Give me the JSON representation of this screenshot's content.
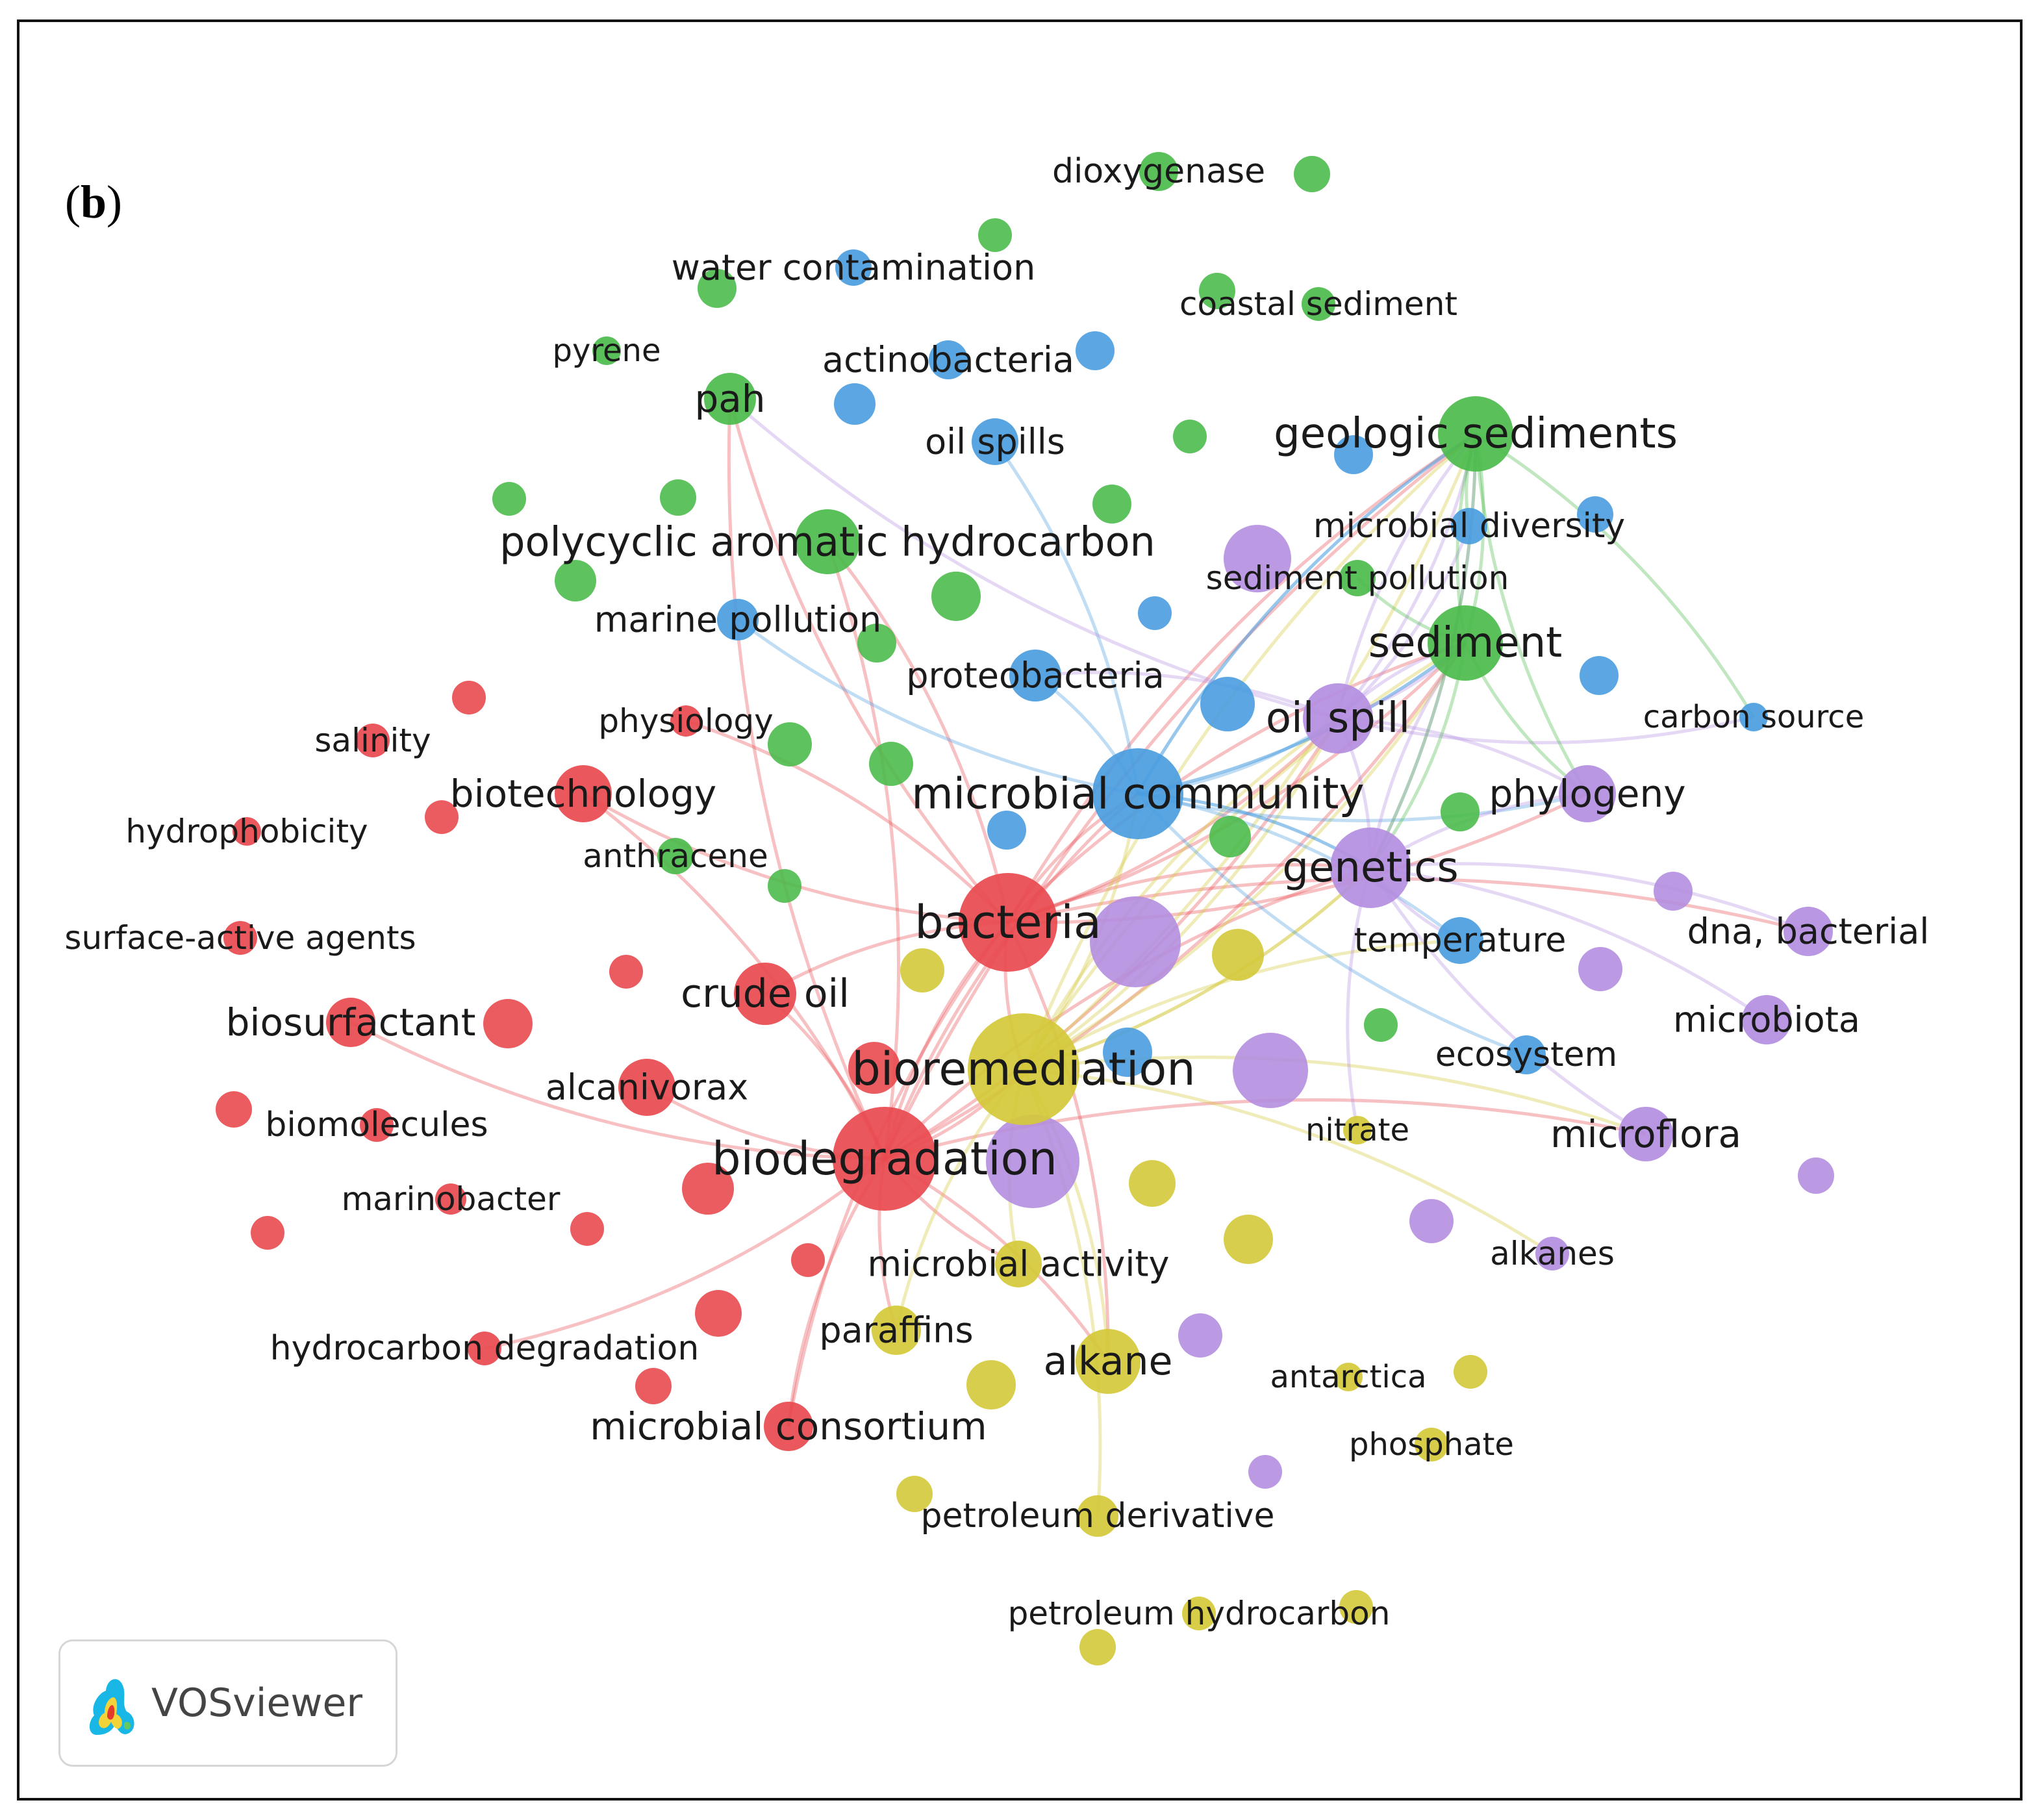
{
  "panel_label": "(b)",
  "panel_label_letter": "b",
  "software": "VOSviewer",
  "clusters": {
    "red": "#e84a4f",
    "green": "#4cbb4c",
    "blue": "#4a9de0",
    "yellow": "#d4c93a",
    "purple": "#b48ee0"
  },
  "nodes": [
    {
      "label": "biodegradation",
      "cluster": "red",
      "weight": 10
    },
    {
      "label": "bacteria",
      "cluster": "red",
      "weight": 9
    },
    {
      "label": "crude oil",
      "cluster": "red",
      "weight": 6
    },
    {
      "label": "biotechnology",
      "cluster": "red",
      "weight": 5
    },
    {
      "label": "biosurfactant",
      "cluster": "red",
      "weight": 5
    },
    {
      "label": "alcanivorax",
      "cluster": "red",
      "weight": 5
    },
    {
      "label": "microbial consortium",
      "cluster": "red",
      "weight": 5
    },
    {
      "label": "hydrocarbon degradation",
      "cluster": "red",
      "weight": 3
    },
    {
      "label": "biomolecules",
      "cluster": "red",
      "weight": 3
    },
    {
      "label": "marinobacter",
      "cluster": "red",
      "weight": 3
    },
    {
      "label": "physiology",
      "cluster": "red",
      "weight": 3
    },
    {
      "label": "salinity",
      "cluster": "red",
      "weight": 3
    },
    {
      "label": "hydrophobicity",
      "cluster": "red",
      "weight": 2
    },
    {
      "label": "surface-active agents",
      "cluster": "red",
      "weight": 3
    },
    {
      "label": "bioremediation",
      "cluster": "yellow",
      "weight": 10
    },
    {
      "label": "alkane",
      "cluster": "yellow",
      "weight": 6
    },
    {
      "label": "paraffins",
      "cluster": "yellow",
      "weight": 4
    },
    {
      "label": "microbial activity",
      "cluster": "yellow",
      "weight": 4
    },
    {
      "label": "petroleum derivative",
      "cluster": "yellow",
      "weight": 3
    },
    {
      "label": "petroleum hydrocarbon",
      "cluster": "yellow",
      "weight": 3
    },
    {
      "label": "antarctica",
      "cluster": "yellow",
      "weight": 2
    },
    {
      "label": "phosphate",
      "cluster": "yellow",
      "weight": 3
    },
    {
      "label": "nitrate",
      "cluster": "yellow",
      "weight": 2
    },
    {
      "label": "microbial community",
      "cluster": "blue",
      "weight": 9
    },
    {
      "label": "proteobacteria",
      "cluster": "blue",
      "weight": 4
    },
    {
      "label": "marine pollution",
      "cluster": "blue",
      "weight": 3
    },
    {
      "label": "oil spills",
      "cluster": "blue",
      "weight": 3
    },
    {
      "label": "actinobacteria",
      "cluster": "blue",
      "weight": 3
    },
    {
      "label": "water contamination",
      "cluster": "blue",
      "weight": 3
    },
    {
      "label": "temperature",
      "cluster": "blue",
      "weight": 4
    },
    {
      "label": "ecosystem",
      "cluster": "blue",
      "weight": 3
    },
    {
      "label": "carbon source",
      "cluster": "blue",
      "weight": 2
    },
    {
      "label": "microbial diversity",
      "cluster": "blue",
      "weight": 3
    },
    {
      "label": "polycyclic aromatic hydrocarbon",
      "cluster": "green",
      "weight": 6
    },
    {
      "label": "pah",
      "cluster": "green",
      "weight": 4
    },
    {
      "label": "geologic sediments",
      "cluster": "green",
      "weight": 7
    },
    {
      "label": "sediment",
      "cluster": "green",
      "weight": 7
    },
    {
      "label": "pyrene",
      "cluster": "green",
      "weight": 2
    },
    {
      "label": "dioxygenase",
      "cluster": "green",
      "weight": 3
    },
    {
      "label": "coastal sediment",
      "cluster": "green",
      "weight": 2
    },
    {
      "label": "anthracene",
      "cluster": "green",
      "weight": 3
    },
    {
      "label": "sediment pollution",
      "cluster": "green",
      "weight": 2
    },
    {
      "label": "oil spill",
      "cluster": "purple",
      "weight": 7
    },
    {
      "label": "genetics",
      "cluster": "purple",
      "weight": 7
    },
    {
      "label": "phylogeny",
      "cluster": "purple",
      "weight": 5
    },
    {
      "label": "dna, bacterial",
      "cluster": "purple",
      "weight": 4
    },
    {
      "label": "microbiota",
      "cluster": "purple",
      "weight": 4
    },
    {
      "label": "microflora",
      "cluster": "purple",
      "weight": 4
    },
    {
      "label": "alkanes",
      "cluster": "purple",
      "weight": 3
    }
  ]
}
